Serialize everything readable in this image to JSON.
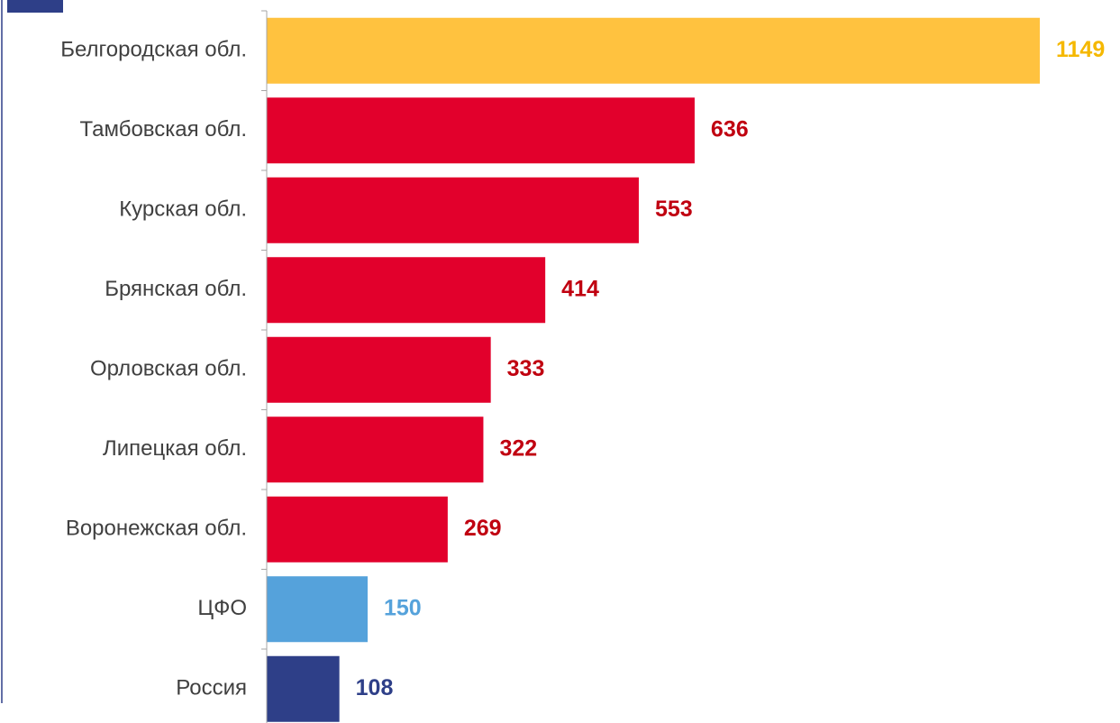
{
  "chart_data": {
    "type": "bar",
    "orientation": "horizontal",
    "categories": [
      "Белгородская обл.",
      "Тамбовская обл.",
      "Курская обл.",
      "Брянская обл.",
      "Орловская обл.",
      "Липецкая обл.",
      "Воронежская обл.",
      "ЦФО",
      "Россия"
    ],
    "values": [
      1149,
      636,
      553,
      414,
      333,
      322,
      269,
      150,
      108
    ],
    "value_labels": [
      "1149",
      "636",
      "553",
      "414",
      "333",
      "322",
      "269",
      "150",
      "108"
    ],
    "bar_colors": [
      "#FFC23F",
      "#E2002C",
      "#E2002C",
      "#E2002C",
      "#E2002C",
      "#E2002C",
      "#E2002C",
      "#55A2DB",
      "#2E3F88"
    ],
    "label_colors": [
      "#F5B800",
      "#C00010",
      "#C00010",
      "#C00010",
      "#C00010",
      "#C00010",
      "#C00010",
      "#55A2DB",
      "#2E3F88"
    ],
    "xlim": [
      0,
      1149
    ],
    "grid": false,
    "legend": "none",
    "title": "",
    "xlabel": "",
    "ylabel": ""
  },
  "decor": {
    "accent_color": "#2E3F88"
  }
}
